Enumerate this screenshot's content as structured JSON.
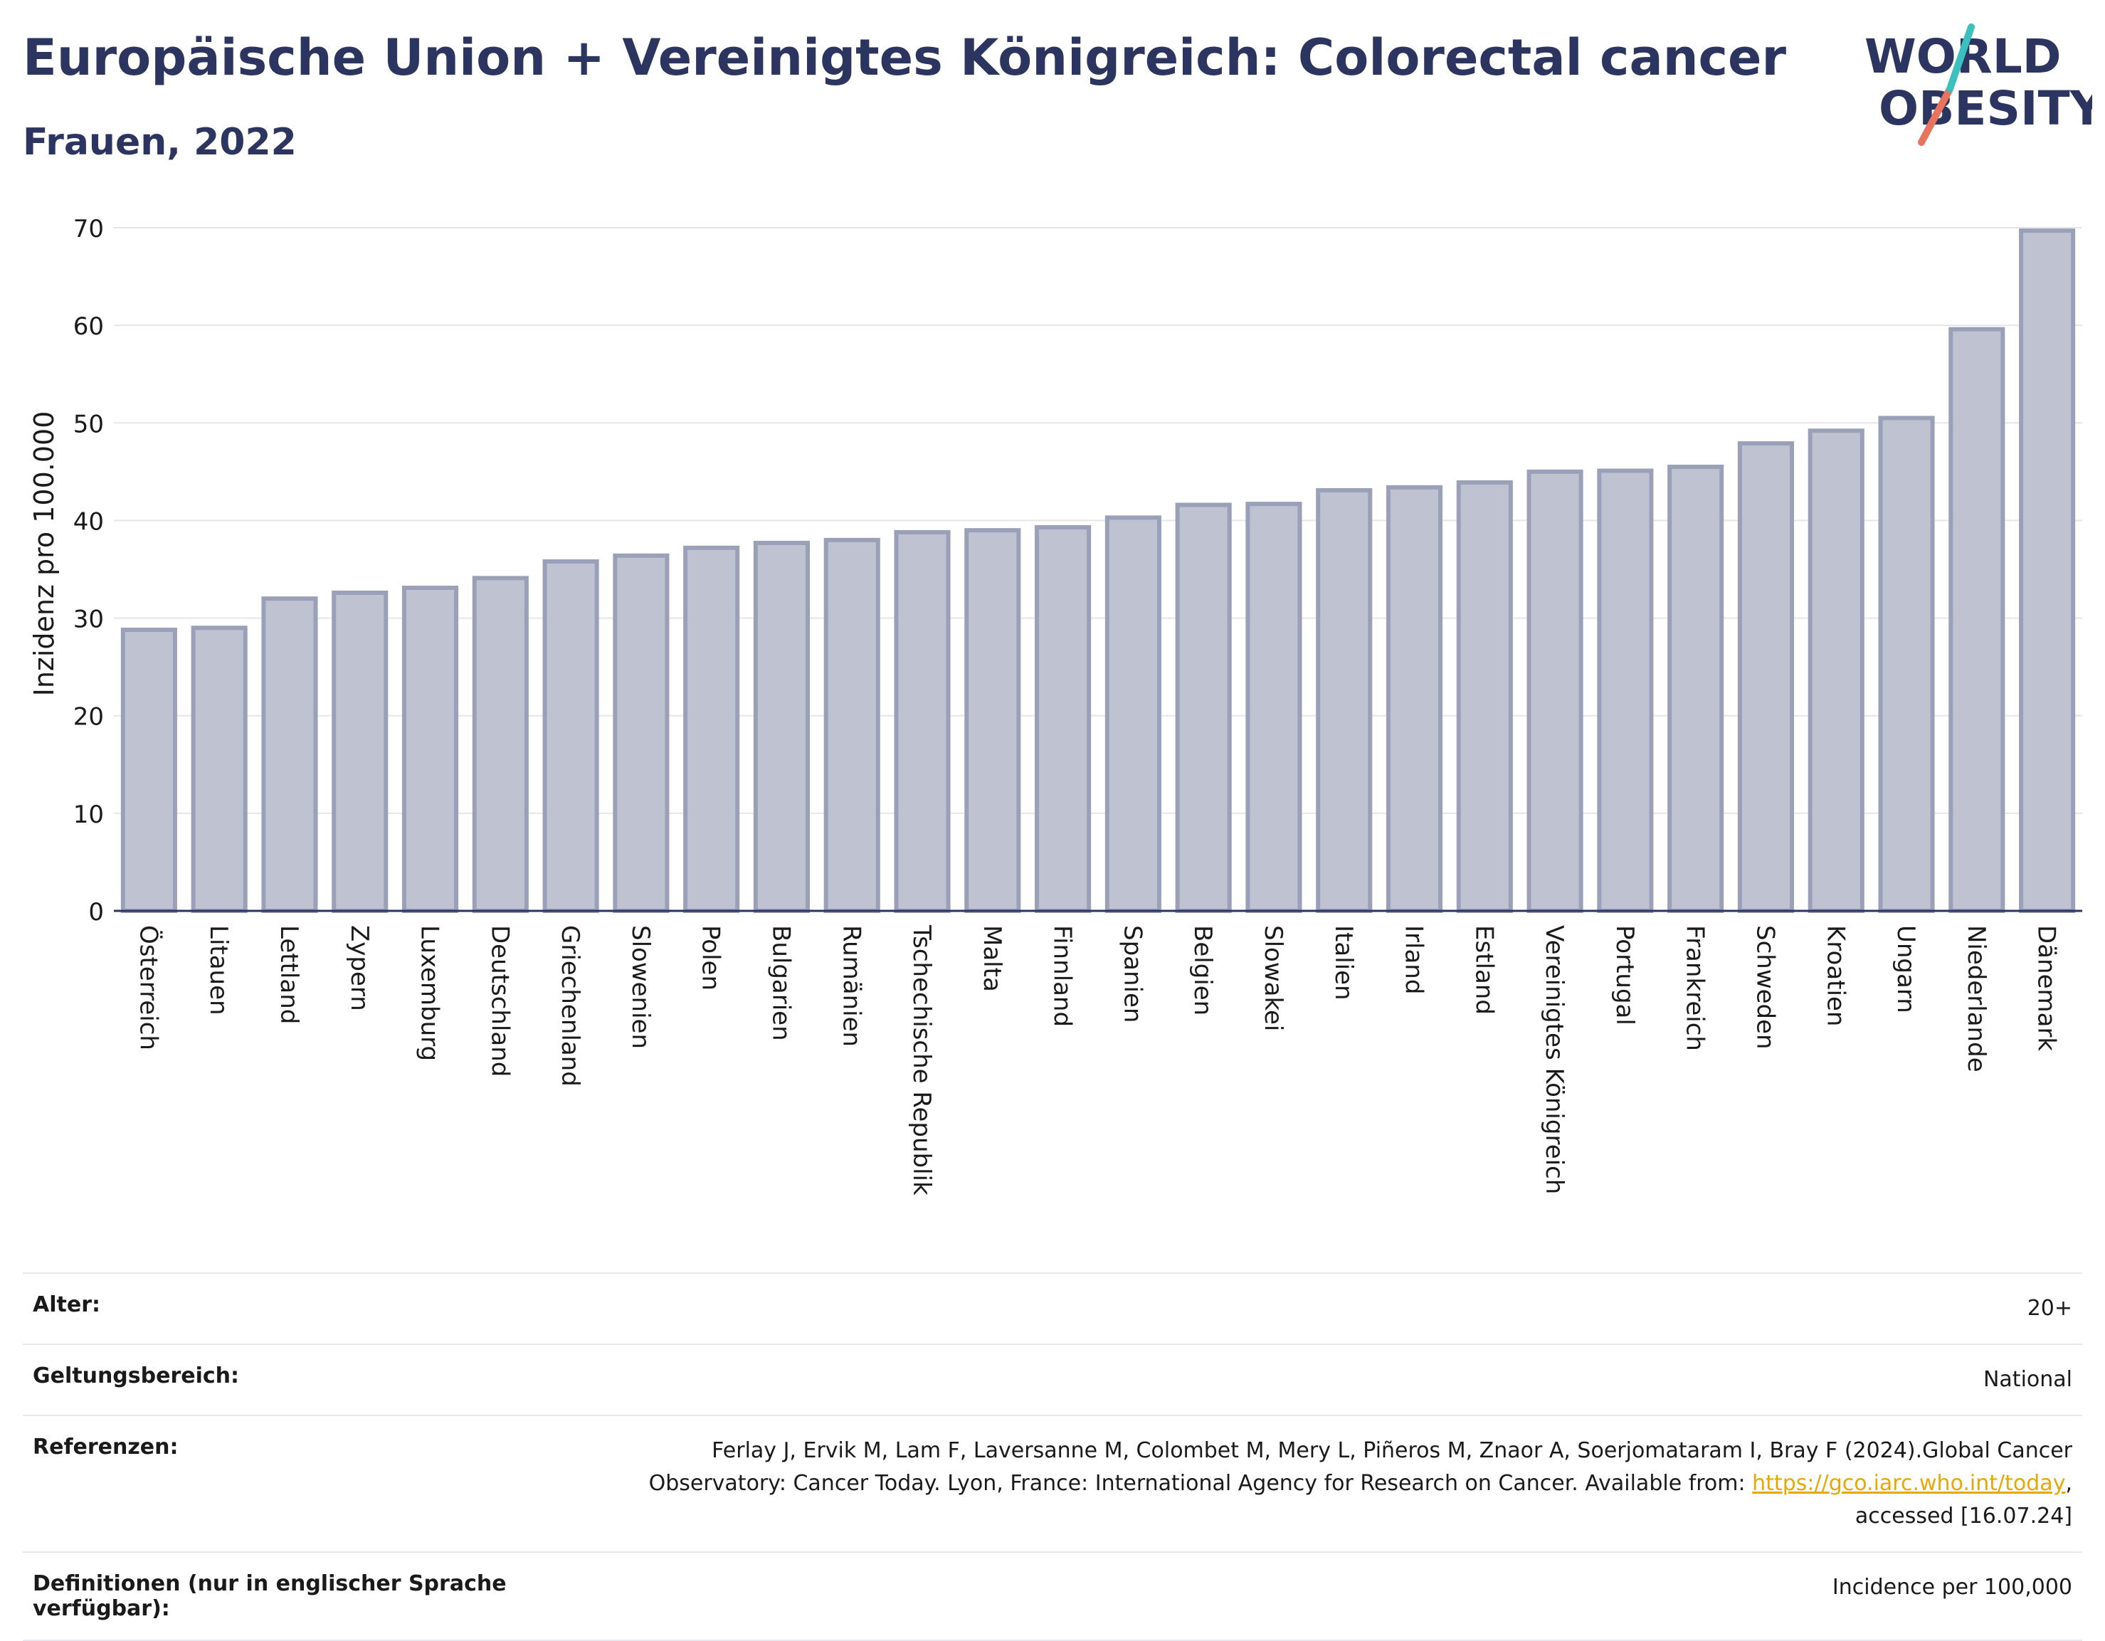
{
  "header": {
    "title": "Europäische Union + Vereinigtes Königreich: Colorectal cancer",
    "subtitle": "Frauen, 2022"
  },
  "logo": {
    "line1": "WORLD",
    "line2": "OBESITY"
  },
  "chart_data": {
    "type": "bar",
    "categories": [
      "Österreich",
      "Litauen",
      "Lettland",
      "Zypern",
      "Luxemburg",
      "Deutschland",
      "Griechenland",
      "Slowenien",
      "Polen",
      "Bulgarien",
      "Rumänien",
      "Tschechische Republik",
      "Malta",
      "Finnland",
      "Spanien",
      "Belgien",
      "Slowakei",
      "Italien",
      "Irland",
      "Estland",
      "Vereinigtes Königreich",
      "Portugal",
      "Frankreich",
      "Schweden",
      "Kroatien",
      "Ungarn",
      "Niederlande",
      "Dänemark"
    ],
    "values": [
      28.8,
      29.0,
      32.0,
      32.6,
      33.1,
      34.1,
      35.8,
      36.4,
      37.2,
      37.7,
      38.0,
      38.8,
      39.0,
      39.3,
      40.3,
      41.6,
      41.7,
      43.1,
      43.4,
      43.9,
      45.0,
      45.1,
      45.5,
      47.9,
      49.2,
      50.5,
      59.6,
      69.7
    ],
    "ylabel": "Inzidenz pro 100.000",
    "xlabel": "",
    "ylim": [
      0,
      70
    ],
    "yticks": [
      0,
      10,
      20,
      30,
      40,
      50,
      60,
      70
    ],
    "grid": true,
    "colors": {
      "bar_fill": "#bfc2d0",
      "bar_stroke": "#9aa0b8",
      "axis": "#2c3560"
    }
  },
  "info": {
    "age_label": "Alter:",
    "age_value": "20+",
    "scope_label": "Geltungsbereich:",
    "scope_value": "National",
    "refs_label": "Referenzen:",
    "refs_line1": "Ferlay J, Ervik M, Lam F, Laversanne M, Colombet M, Mery L, Piñeros M, Znaor A, Soerjomataram I, Bray F (2024).Global Cancer",
    "refs_line2_pre": "Observatory: Cancer Today. Lyon, France: International Agency for Research on Cancer. Available from: ",
    "refs_link": "https://gco.iarc.who.int/today",
    "refs_line2_post": ",",
    "refs_line3": "accessed [16.07.24]",
    "def_label": "Definitionen (nur in englischer Sprache verfügbar):",
    "def_value": "Incidence per 100,000"
  }
}
